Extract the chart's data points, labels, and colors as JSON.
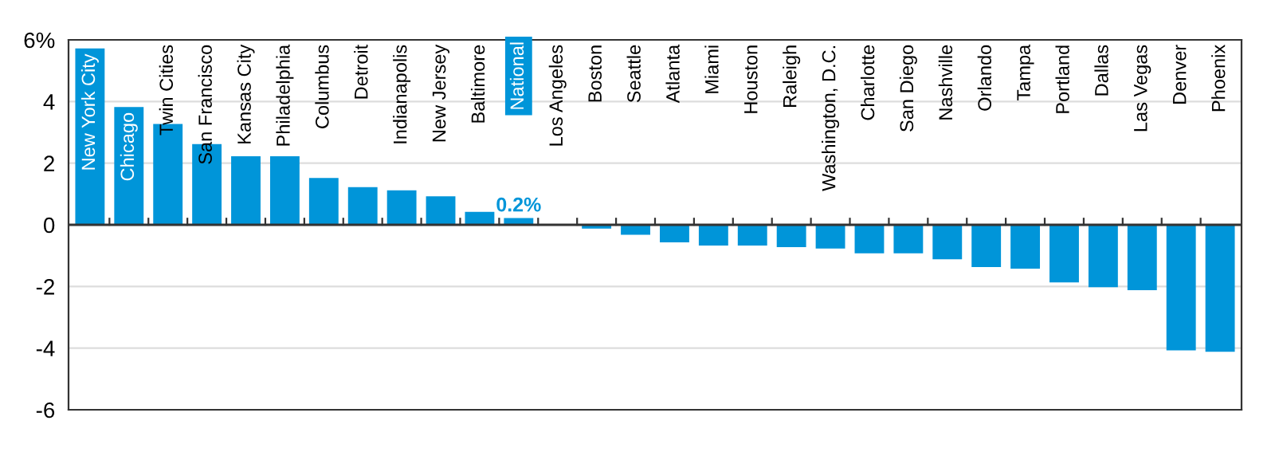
{
  "chart_data": {
    "type": "bar",
    "categories": [
      "New York City",
      "Chicago",
      "Twin Cities",
      "San Francisco",
      "Kansas City",
      "Philadelphia",
      "Columbus",
      "Detroit",
      "Indianapolis",
      "New Jersey",
      "Baltimore",
      "National",
      "Los Angeles",
      "Boston",
      "Seattle",
      "Atlanta",
      "Miami",
      "Houston",
      "Raleigh",
      "Washington, D.C.",
      "Charlotte",
      "San Diego",
      "Nashville",
      "Orlando",
      "Tampa",
      "Portland",
      "Dallas",
      "Las Vegas",
      "Denver",
      "Phoenix"
    ],
    "values": [
      5.7,
      3.8,
      3.25,
      2.6,
      2.2,
      2.2,
      1.5,
      1.2,
      1.1,
      0.9,
      0.4,
      0.2,
      0,
      -0.1,
      -0.3,
      -0.55,
      -0.65,
      -0.65,
      -0.7,
      -0.75,
      -0.9,
      -0.9,
      -1.1,
      -1.35,
      -1.4,
      -1.85,
      -2.0,
      -2.1,
      -4.05,
      -4.1
    ],
    "value_labels": [
      null,
      null,
      null,
      null,
      null,
      null,
      null,
      null,
      null,
      null,
      null,
      "0.2%",
      null,
      null,
      null,
      null,
      null,
      null,
      null,
      null,
      null,
      null,
      null,
      null,
      null,
      null,
      null,
      null,
      null,
      null
    ],
    "color": "#0095d9",
    "ylim": [
      -6,
      6
    ],
    "yticks": [
      {
        "value": 6,
        "label": "6%"
      },
      4,
      2,
      0,
      -2,
      -4,
      -6
    ],
    "grid": "y"
  }
}
